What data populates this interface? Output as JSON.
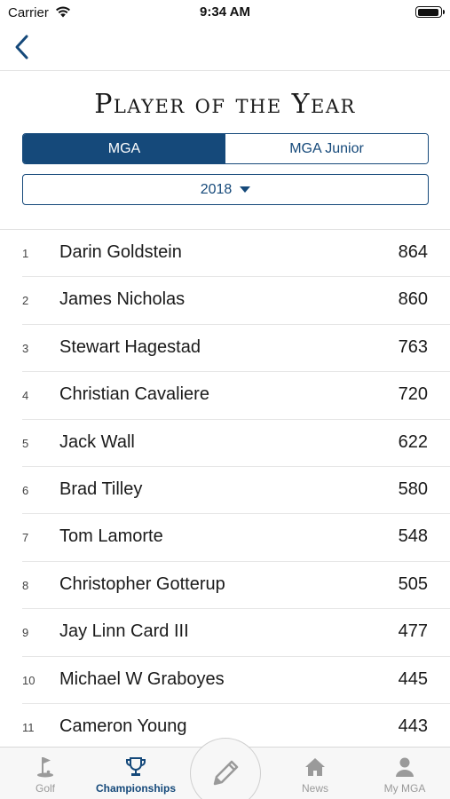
{
  "status": {
    "carrier": "Carrier",
    "time": "9:34 AM"
  },
  "title": "Player of the Year",
  "segments": [
    {
      "label": "MGA",
      "selected": true
    },
    {
      "label": "MGA Junior",
      "selected": false
    }
  ],
  "year": "2018",
  "players": [
    {
      "rank": "1",
      "name": "Darin Goldstein",
      "points": "864"
    },
    {
      "rank": "2",
      "name": "James Nicholas",
      "points": "860"
    },
    {
      "rank": "3",
      "name": "Stewart Hagestad",
      "points": "763"
    },
    {
      "rank": "4",
      "name": "Christian Cavaliere",
      "points": "720"
    },
    {
      "rank": "5",
      "name": "Jack Wall",
      "points": "622"
    },
    {
      "rank": "6",
      "name": "Brad Tilley",
      "points": "580"
    },
    {
      "rank": "7",
      "name": "Tom Lamorte",
      "points": "548"
    },
    {
      "rank": "8",
      "name": "Christopher Gotterup",
      "points": "505"
    },
    {
      "rank": "9",
      "name": "Jay Linn Card III",
      "points": "477"
    },
    {
      "rank": "10",
      "name": "Michael W Graboyes",
      "points": "445"
    },
    {
      "rank": "11",
      "name": "Cameron Young",
      "points": "443"
    }
  ],
  "tabs": {
    "golf": "Golf",
    "championships": "Championships",
    "news": "News",
    "my_mga": "My MGA"
  },
  "icons": {
    "back": "chevron-left-icon",
    "golf": "golf-flag-icon",
    "championships": "trophy-icon",
    "compose": "pencil-icon",
    "news": "home-icon",
    "my_mga": "person-icon"
  },
  "colors": {
    "accent": "#15497a",
    "inactive_tab": "#9a9a9a"
  }
}
